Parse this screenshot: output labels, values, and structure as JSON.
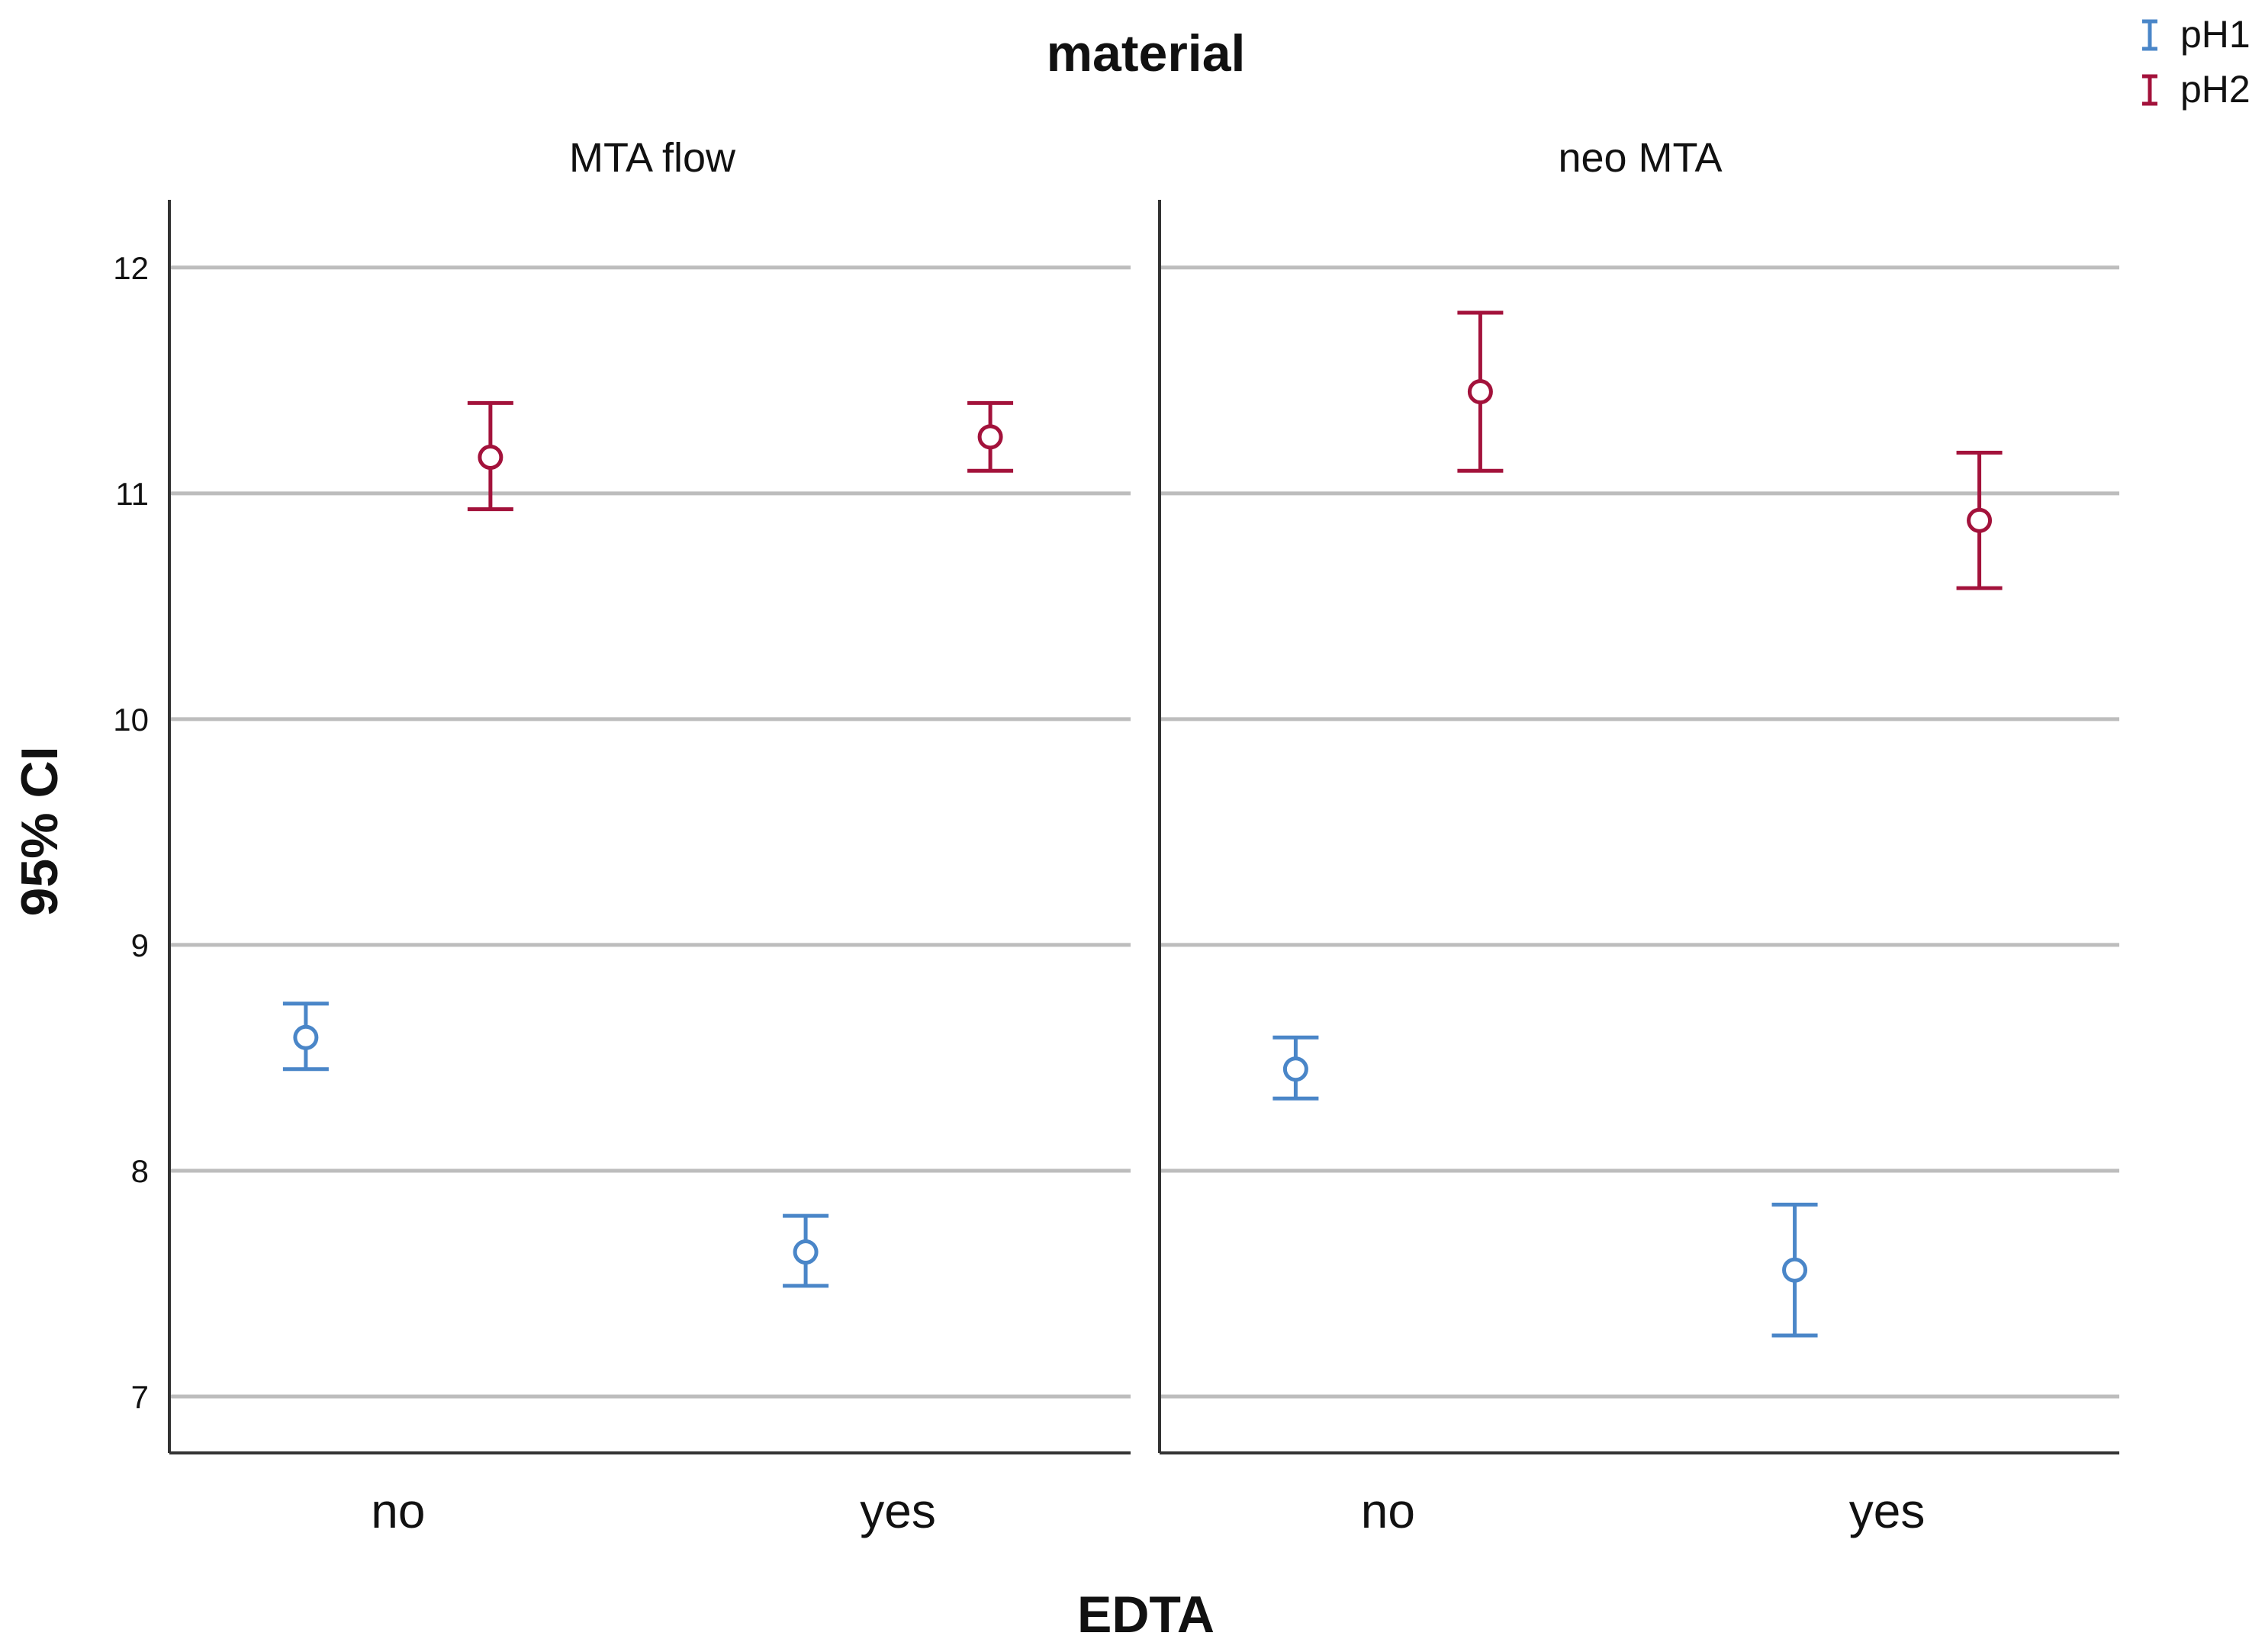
{
  "chart_data": {
    "type": "errorbar",
    "title": "material",
    "xlabel": "EDTA",
    "ylabel": "95% CI",
    "ylim": [
      6.75,
      12.3
    ],
    "yticks": [
      7,
      8,
      9,
      10,
      11,
      12
    ],
    "ytick_labels": [
      "7",
      "8",
      "9",
      "10",
      "11",
      "12"
    ],
    "grid": true,
    "legend_position": "top-right",
    "categories": [
      "no",
      "yes"
    ],
    "colors": {
      "pH1": "#4a86c8",
      "pH2": "#a3123b"
    },
    "series": [
      {
        "name": "pH1"
      },
      {
        "name": "pH2"
      }
    ],
    "panels": [
      {
        "label": "MTA flow",
        "points": [
          {
            "category": "no",
            "series": "pH1",
            "mean": 8.59,
            "lower": 8.45,
            "upper": 8.74
          },
          {
            "category": "no",
            "series": "pH2",
            "mean": 11.16,
            "lower": 10.93,
            "upper": 11.4
          },
          {
            "category": "yes",
            "series": "pH1",
            "mean": 7.64,
            "lower": 7.49,
            "upper": 7.8
          },
          {
            "category": "yes",
            "series": "pH2",
            "mean": 11.25,
            "lower": 11.1,
            "upper": 11.4
          }
        ]
      },
      {
        "label": "neo MTA",
        "points": [
          {
            "category": "no",
            "series": "pH1",
            "mean": 8.45,
            "lower": 8.32,
            "upper": 8.59
          },
          {
            "category": "no",
            "series": "pH2",
            "mean": 11.45,
            "lower": 11.1,
            "upper": 11.8
          },
          {
            "category": "yes",
            "series": "pH1",
            "mean": 7.56,
            "lower": 7.27,
            "upper": 7.85
          },
          {
            "category": "yes",
            "series": "pH2",
            "mean": 10.88,
            "lower": 10.58,
            "upper": 11.18
          }
        ]
      }
    ]
  }
}
